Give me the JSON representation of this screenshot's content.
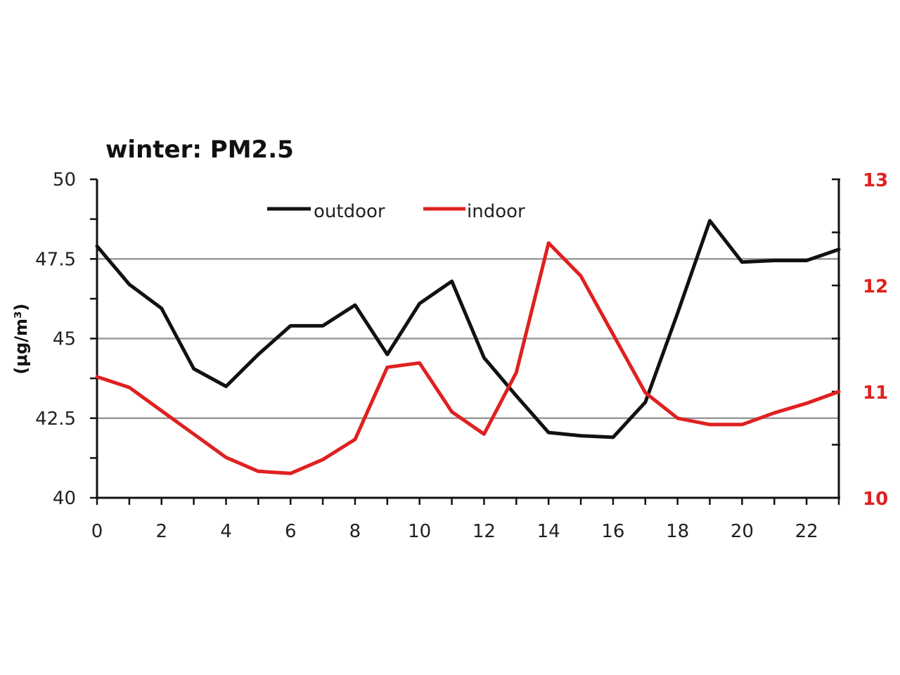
{
  "chart_data": {
    "type": "line",
    "title": "winter: PM2.5",
    "ylabel": "(μg/m³)",
    "xlabel": "",
    "x": [
      0,
      1,
      2,
      3,
      4,
      5,
      6,
      7,
      8,
      9,
      10,
      11,
      12,
      13,
      14,
      15,
      16,
      17,
      18,
      19,
      20,
      21,
      22,
      23
    ],
    "x_ticks": [
      "0",
      "2",
      "4",
      "6",
      "8",
      "10",
      "12",
      "14",
      "16",
      "18",
      "20",
      "22"
    ],
    "xlim": [
      0,
      23
    ],
    "ylim_left": [
      40,
      50
    ],
    "yticks_left": [
      "40",
      "42.5",
      "45",
      "47.5",
      "50"
    ],
    "ylim_right": [
      10,
      13
    ],
    "yticks_right": [
      "10",
      "11",
      "12",
      "13"
    ],
    "grid": "horizontal at 42.5, 45, 47.5",
    "legend_position": "top",
    "series": [
      {
        "name": "outdoor",
        "axis": "left",
        "color": "#111111",
        "values": [
          47.9,
          46.7,
          45.95,
          44.05,
          43.5,
          44.5,
          45.4,
          45.4,
          46.05,
          44.5,
          46.1,
          46.8,
          44.4,
          43.2,
          42.05,
          41.95,
          41.9,
          43.0,
          45.8,
          48.7,
          47.4,
          47.45,
          47.45,
          47.8
        ]
      },
      {
        "name": "indoor",
        "axis": "right",
        "color": "#e02020",
        "values": [
          11.14,
          11.04,
          10.82,
          10.6,
          10.38,
          10.25,
          10.23,
          10.36,
          10.55,
          11.23,
          11.27,
          10.81,
          10.6,
          11.18,
          12.4,
          12.09,
          11.54,
          10.99,
          10.75,
          10.69,
          10.69,
          10.8,
          10.89,
          11.0
        ]
      }
    ]
  }
}
